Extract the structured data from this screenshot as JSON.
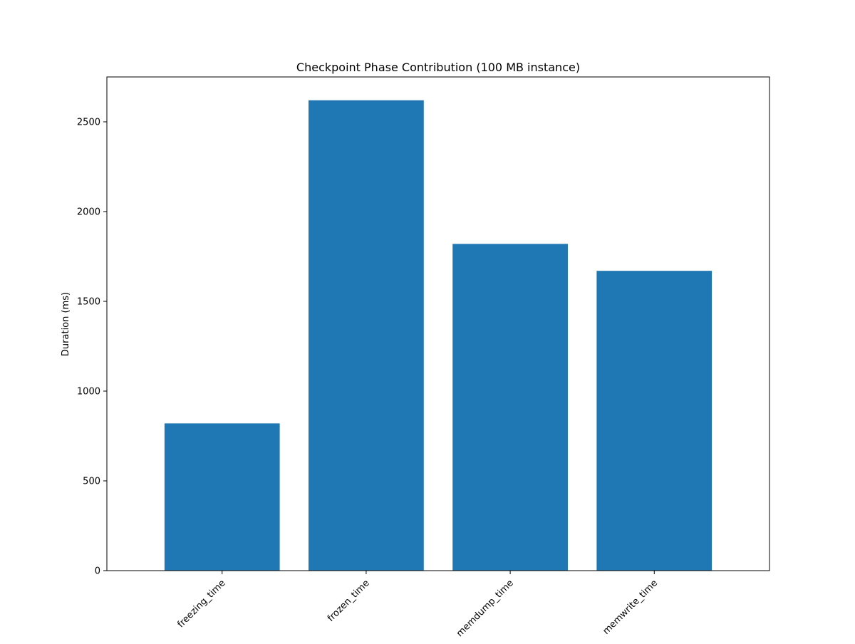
{
  "chart_data": {
    "type": "bar",
    "title": "Checkpoint Phase Contribution (100 MB instance)",
    "xlabel": "",
    "ylabel": "Duration (ms)",
    "categories": [
      "freezing_time",
      "frozen_time",
      "memdump_time",
      "memwrite_time"
    ],
    "values": [
      820,
      2620,
      1820,
      1670
    ],
    "ylim": [
      0,
      2750
    ],
    "yticks": [
      0,
      500,
      1000,
      1500,
      2000,
      2500
    ],
    "bar_color": "#1f77b4",
    "grid": false,
    "legend": "none"
  }
}
